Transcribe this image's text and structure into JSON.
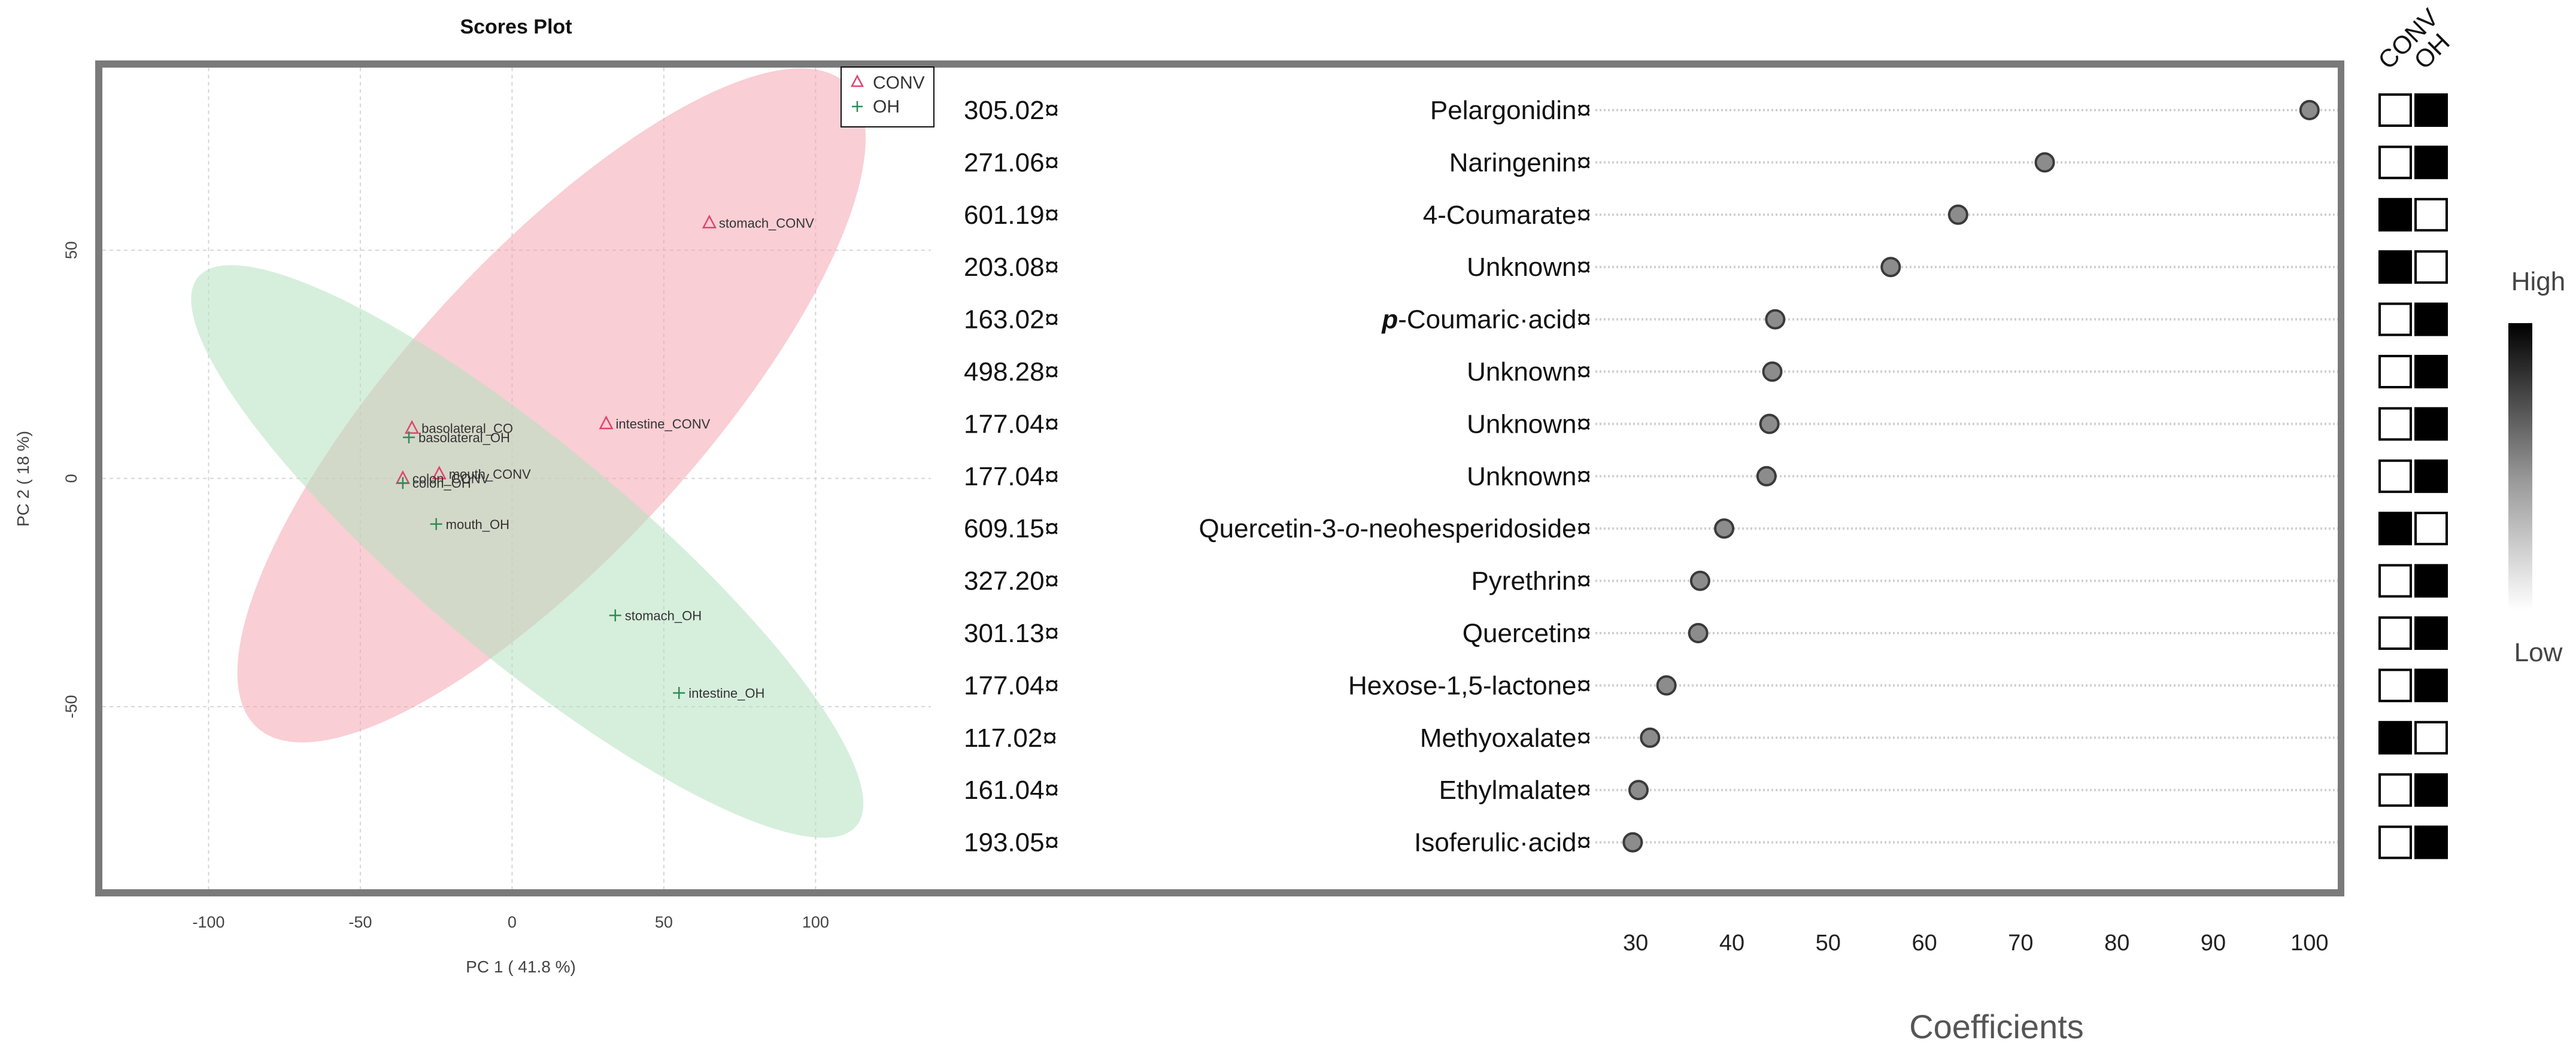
{
  "chart_data": [
    {
      "type": "scatter",
      "title": "Scores Plot",
      "xlabel": "PC 1 ( 41.8 %)",
      "ylabel": "PC 2 ( 18 %)",
      "xlim": [
        -135,
        138
      ],
      "ylim": [
        -90,
        90
      ],
      "xticks": [
        -100,
        -50,
        0,
        50,
        100
      ],
      "yticks": [
        -50,
        0,
        50
      ],
      "grid": true,
      "legend": {
        "placement": "top-right",
        "entries": [
          "CONV",
          "OH"
        ]
      },
      "ellipses": [
        {
          "series": "CONV",
          "color": "#f4a6b3",
          "cx": 13,
          "cy": 16,
          "rx": 120,
          "ry": 36,
          "angle_deg": 36
        },
        {
          "series": "OH",
          "color": "#b4e2bf",
          "cx": 5,
          "cy": -16,
          "rx": 124,
          "ry": 25,
          "angle_deg": -29
        }
      ],
      "series": [
        {
          "name": "CONV",
          "marker": "triangle",
          "color": "#e0436b",
          "points": [
            {
              "label": "stomach_CONV",
              "x": 65,
              "y": 56
            },
            {
              "label": "intestine_CONV",
              "x": 31,
              "y": 12
            },
            {
              "label": "basolateral_CO",
              "x": -33,
              "y": 11
            },
            {
              "label": "mouth_CONV",
              "x": -24,
              "y": 1
            },
            {
              "label": "colon_CONV",
              "x": -36,
              "y": 0
            }
          ]
        },
        {
          "name": "OH",
          "marker": "plus",
          "color": "#2e8b57",
          "points": [
            {
              "label": "basolateral_OH",
              "x": -34,
              "y": 9
            },
            {
              "label": "colon_OH",
              "x": -36,
              "y": -1
            },
            {
              "label": "mouth_OH",
              "x": -25,
              "y": -10
            },
            {
              "label": "stomach_OH",
              "x": 34,
              "y": -30
            },
            {
              "label": "intestine_OH",
              "x": 55,
              "y": -47
            }
          ]
        }
      ]
    },
    {
      "type": "scatter",
      "xlabel": "Coefficients",
      "xlim": [
        28,
        102
      ],
      "xticks": [
        30,
        40,
        50,
        60,
        70,
        80,
        90,
        100
      ],
      "groups": [
        "CONV",
        "OH"
      ],
      "color_scale": {
        "high_label": "High",
        "low_label": "Low"
      },
      "rows": [
        {
          "mass": "305.02¤",
          "compound": "Pelargonidin¤",
          "value": 100,
          "conv": "low",
          "oh": "high"
        },
        {
          "mass": "271.06¤",
          "compound": "Naringenin¤",
          "value": 72.5,
          "conv": "low",
          "oh": "high"
        },
        {
          "mass": "601.19¤",
          "compound": "4-Coumarate¤",
          "value": 63.5,
          "conv": "high",
          "oh": "low"
        },
        {
          "mass": "203.08¤",
          "compound": "Unknown¤",
          "value": 56.5,
          "conv": "high",
          "oh": "low"
        },
        {
          "mass": "163.02¤",
          "compound": "p-Coumaric·acid¤",
          "value": 44.5,
          "conv": "low",
          "oh": "high"
        },
        {
          "mass": "498.28¤",
          "compound": "Unknown¤",
          "value": 44.2,
          "conv": "low",
          "oh": "high"
        },
        {
          "mass": "177.04¤",
          "compound": "Unknown¤",
          "value": 43.9,
          "conv": "low",
          "oh": "high"
        },
        {
          "mass": "177.04¤",
          "compound": "Unknown¤",
          "value": 43.6,
          "conv": "low",
          "oh": "high"
        },
        {
          "mass": "609.15¤",
          "compound": "Quercetin-3-o-neohesperidoside¤",
          "value": 39.2,
          "conv": "high",
          "oh": "low"
        },
        {
          "mass": "327.20¤",
          "compound": "Pyrethrin¤",
          "value": 36.7,
          "conv": "low",
          "oh": "high"
        },
        {
          "mass": "301.13¤",
          "compound": "Quercetin¤",
          "value": 36.5,
          "conv": "low",
          "oh": "high"
        },
        {
          "mass": "177.04¤",
          "compound": "Hexose-1,5-lactone¤",
          "value": 33.2,
          "conv": "low",
          "oh": "high"
        },
        {
          "mass": "117.02¤",
          "compound": "Methyoxalate¤",
          "value": 31.5,
          "conv": "high",
          "oh": "low"
        },
        {
          "mass": "161.04¤",
          "compound": "Ethylmalate¤",
          "value": 30.3,
          "conv": "low",
          "oh": "high"
        },
        {
          "mass": "193.05¤",
          "compound": "Isoferulic·acid¤",
          "value": 29.7,
          "conv": "low",
          "oh": "high"
        }
      ]
    }
  ]
}
